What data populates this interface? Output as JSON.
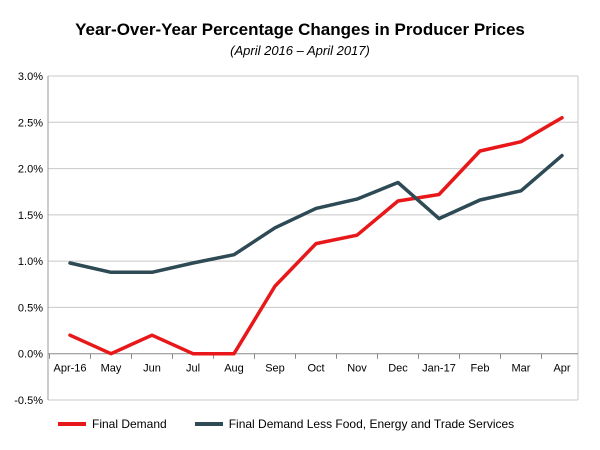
{
  "chart_data": {
    "type": "line",
    "title": "Year-Over-Year Percentage Changes in Producer Prices",
    "subtitle": "(April 2016 – April 2017)",
    "categories": [
      "Apr-16",
      "May",
      "Jun",
      "Jul",
      "Aug",
      "Sep",
      "Oct",
      "Nov",
      "Dec",
      "Jan-17",
      "Feb",
      "Mar",
      "Apr"
    ],
    "ylim": [
      -0.5,
      3.0
    ],
    "yticks": [
      "-0.5%",
      "0.0%",
      "0.5%",
      "1.0%",
      "1.5%",
      "2.0%",
      "2.5%",
      "3.0%"
    ],
    "ytick_values": [
      -0.5,
      0.0,
      0.5,
      1.0,
      1.5,
      2.0,
      2.5,
      3.0
    ],
    "series": [
      {
        "name": "Final Demand",
        "color": "#e8181a",
        "values": [
          0.2,
          0.0,
          0.2,
          0.0,
          0.0,
          0.73,
          1.19,
          1.28,
          1.65,
          1.72,
          2.19,
          2.29,
          2.55
        ]
      },
      {
        "name": "Final Demand Less Food, Energy and Trade Services",
        "color": "#2d4a55",
        "values": [
          0.98,
          0.88,
          0.88,
          0.98,
          1.07,
          1.36,
          1.57,
          1.67,
          1.85,
          1.46,
          1.66,
          1.76,
          2.14
        ]
      }
    ],
    "legend_position": "bottom-left"
  }
}
